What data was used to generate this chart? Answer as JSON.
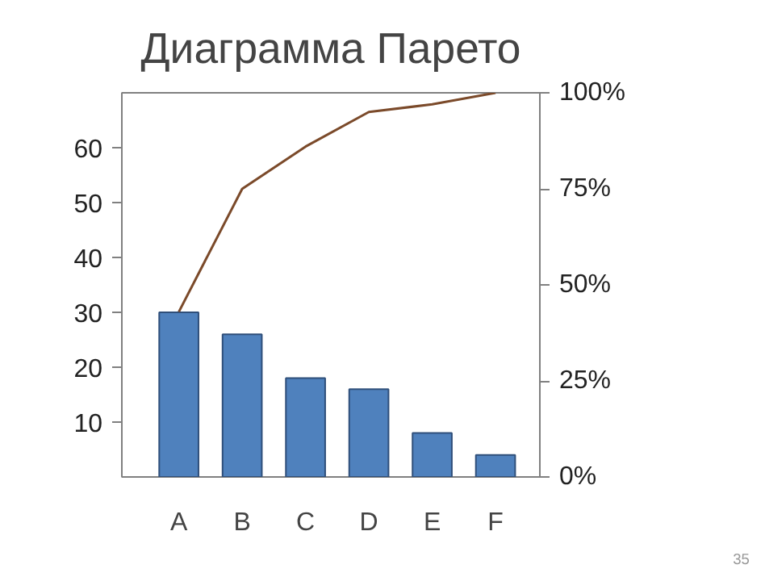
{
  "chart_data": {
    "type": "bar",
    "title": "Диаграмма Парето",
    "categories": [
      "A",
      "B",
      "C",
      "D",
      "E",
      "F"
    ],
    "series": [
      {
        "color": "#4f81bd",
        "values": [
          30,
          26,
          18,
          16,
          8,
          4
        ]
      },
      {
        "type": "line",
        "axis": "y2",
        "color": "#7b4a2a",
        "values": [
          43,
          75,
          86,
          95,
          97,
          100
        ]
      }
    ],
    "ylim": [
      0,
      70
    ],
    "yticks": [
      10,
      20,
      30,
      40,
      50,
      60
    ],
    "y2lim": [
      0,
      100
    ],
    "y2ticks": [
      {
        "value": 0,
        "label": "0%"
      },
      {
        "value": 25,
        "label": "25%"
      },
      {
        "value": 50,
        "label": "50%"
      },
      {
        "value": 75,
        "label": "75%"
      },
      {
        "value": 100,
        "label": "100%"
      }
    ],
    "grid": false,
    "marker": "none",
    "line_style": "solid",
    "annotations": [
      "35"
    ]
  }
}
